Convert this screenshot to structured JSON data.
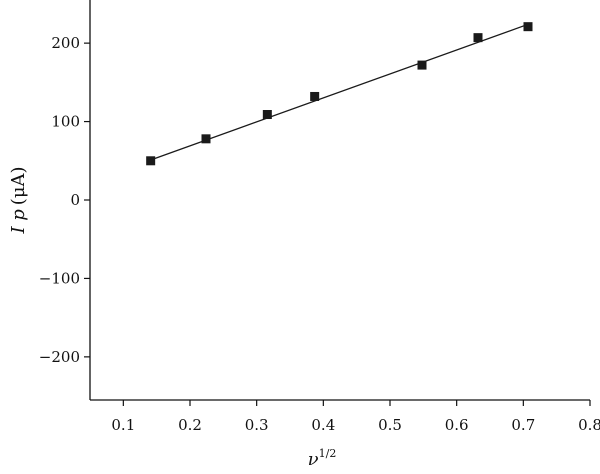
{
  "chart_data": {
    "type": "scatter",
    "xlabel": "ν",
    "xlabel_sup": "1/2",
    "ylabel_main": "I p",
    "ylabel_unit": "(μA)",
    "xlim": [
      0.05,
      0.8
    ],
    "ylim": [
      -255,
      255
    ],
    "xticks": [
      0.1,
      0.2,
      0.3,
      0.4,
      0.5,
      0.6,
      0.7,
      0.8
    ],
    "xtick_labels": [
      "0.1",
      "0.2",
      "0.3",
      "0.4",
      "0.5",
      "0.6",
      "0.7",
      "0.8"
    ],
    "yticks": [
      -200,
      -100,
      0,
      100,
      200
    ],
    "ytick_labels": [
      "−200",
      "−100",
      "0",
      "100",
      "200"
    ],
    "grid": false,
    "series": [
      {
        "marker": "square",
        "color": "#1a1a1a",
        "x": [
          0.141,
          0.224,
          0.316,
          0.387,
          0.548,
          0.632,
          0.707
        ],
        "y": [
          50,
          78,
          109,
          132,
          172,
          207,
          221
        ]
      }
    ],
    "fit_line": {
      "color": "#1a1a1a",
      "x": [
        0.141,
        0.707
      ],
      "y": [
        51,
        224
      ]
    }
  }
}
